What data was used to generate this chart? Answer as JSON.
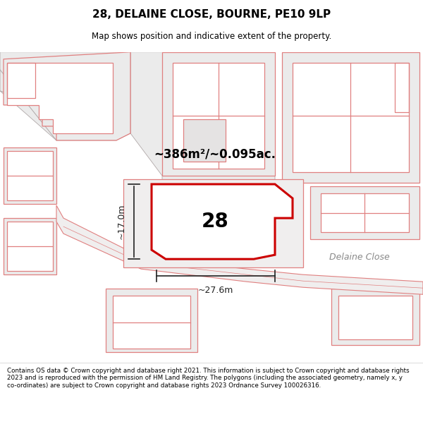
{
  "title": "28, DELAINE CLOSE, BOURNE, PE10 9LP",
  "subtitle": "Map shows position and indicative extent of the property.",
  "area_label": "~386m²/~0.095ac.",
  "plot_number": "28",
  "dimension_width": "~27.6m",
  "dimension_height": "~17.0m",
  "street_label": "Delaine Close",
  "footer": "Contains OS data © Crown copyright and database right 2021. This information is subject to Crown copyright and database rights 2023 and is reproduced with the permission of HM Land Registry. The polygons (including the associated geometry, namely x, y co-ordinates) are subject to Crown copyright and database rights 2023 Ordnance Survey 100026316.",
  "bg_map_color": "#f2f0f0",
  "road_fill_color": "#e8e8e8",
  "building_fill_color": "#e0dede",
  "highlight_color": "#cc0000",
  "neighbor_edge_color": "#e08080",
  "gray_edge_color": "#b0a8a8",
  "title_color": "#000000",
  "footer_color": "#000000",
  "dim_color": "#222222",
  "street_label_color": "#888888"
}
